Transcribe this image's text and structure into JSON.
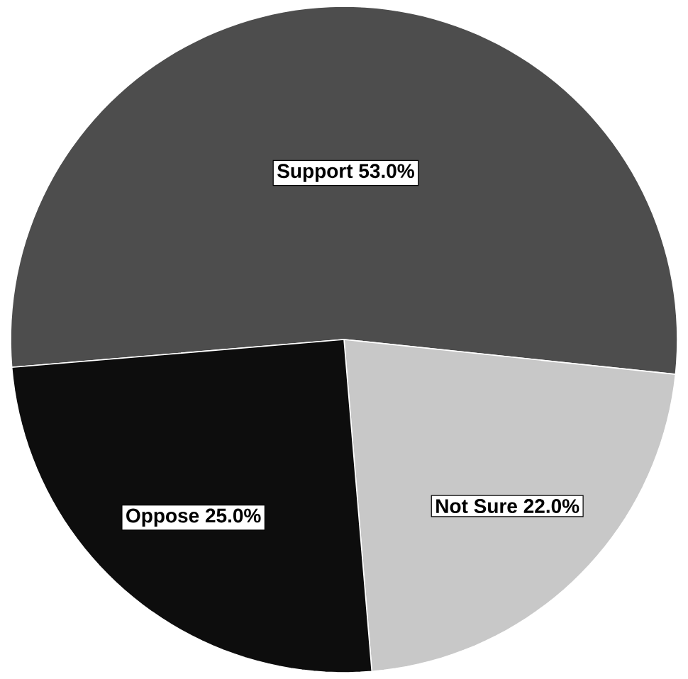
{
  "chart_data": {
    "type": "pie",
    "categories": [
      "Support",
      "Not Sure",
      "Oppose"
    ],
    "values": [
      53.0,
      22.0,
      25.0
    ],
    "value_labels": [
      "53.0%",
      "22.0%",
      "25.0%"
    ],
    "colors": [
      "#4d4d4d",
      "#c8c8c8",
      "#0d0d0d"
    ]
  }
}
